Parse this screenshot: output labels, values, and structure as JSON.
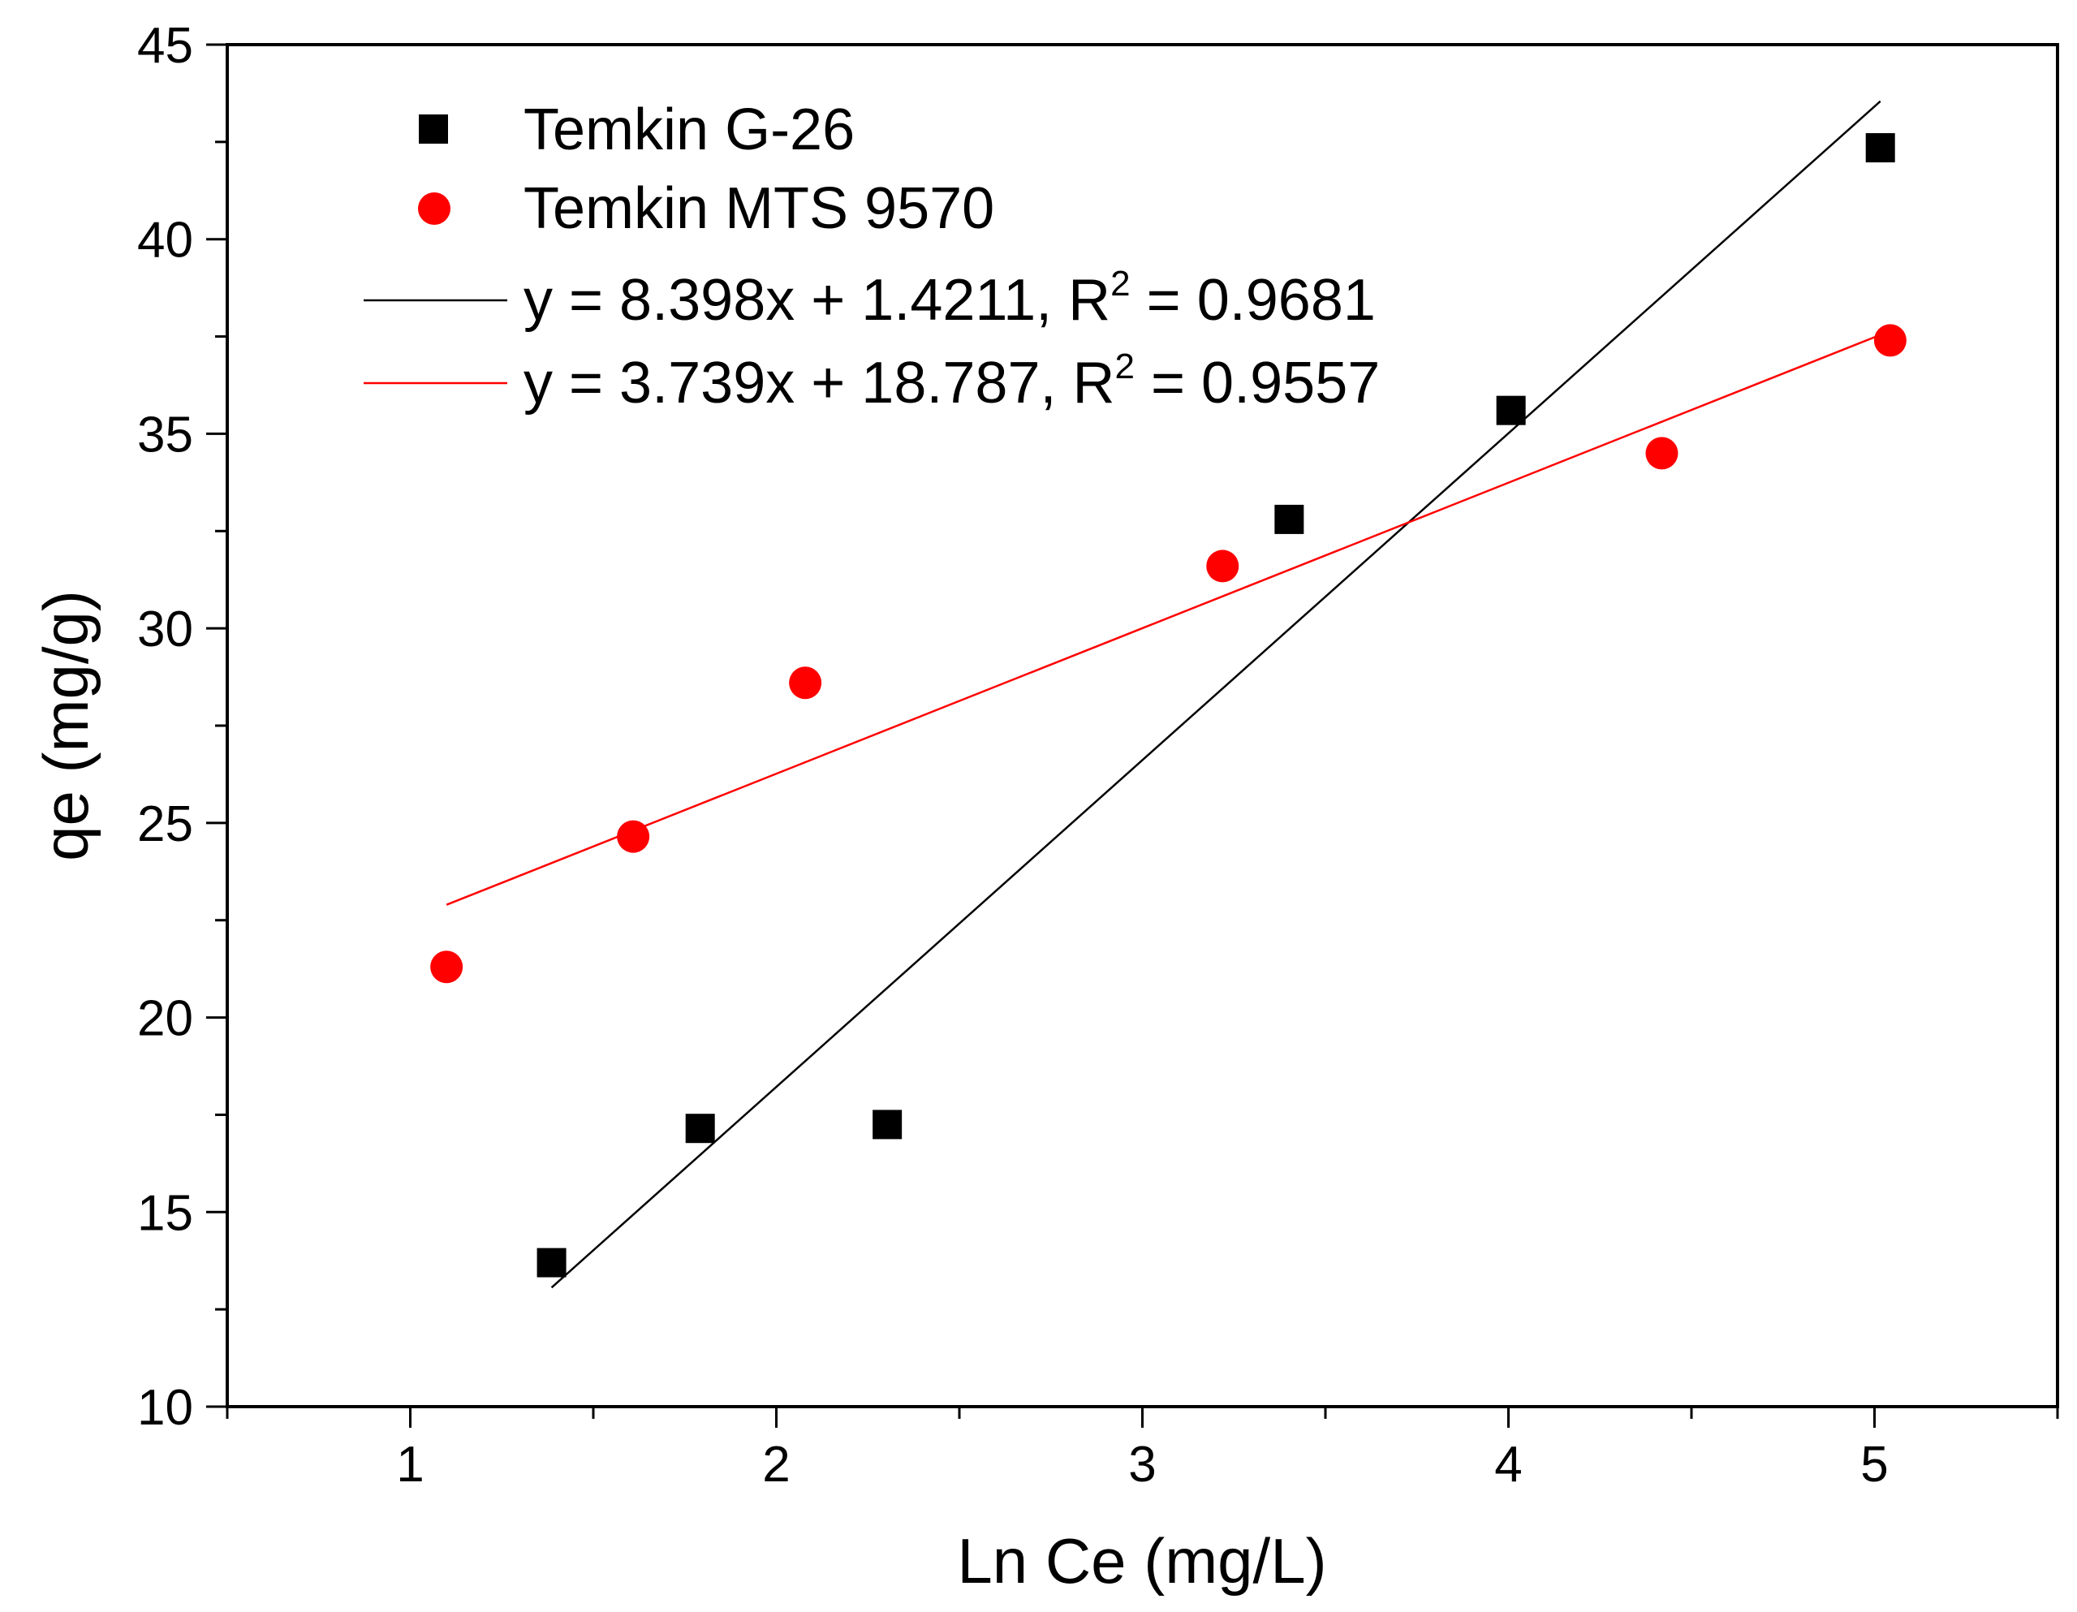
{
  "chart_data": {
    "type": "scatter",
    "title": "",
    "xlabel": "Ln Ce (mg/L)",
    "ylabel": "qe (mg/g)",
    "xlim": [
      0.5,
      5.5
    ],
    "ylim": [
      10,
      45
    ],
    "xticks": [
      1,
      2,
      3,
      4,
      5
    ],
    "xtick_labels": [
      "1",
      "2",
      "3",
      "4",
      "5"
    ],
    "yticks": [
      10,
      15,
      20,
      25,
      30,
      35,
      40,
      45
    ],
    "ytick_labels": [
      "10",
      "15",
      "20",
      "25",
      "30",
      "35",
      "40",
      "45"
    ],
    "grid": false,
    "legend_position": "top-left",
    "series": [
      {
        "name": "Temkin G-26",
        "marker": "square",
        "color": "#000000",
        "x": [
          1.386,
          1.792,
          2.303,
          3.401,
          4.007,
          5.016
        ],
        "y": [
          13.7,
          17.15,
          17.25,
          32.8,
          35.6,
          42.35
        ]
      },
      {
        "name": "Temkin MTS 9570",
        "marker": "circle",
        "color": "#ff0000",
        "x": [
          1.099,
          1.609,
          2.079,
          3.219,
          4.419,
          5.043
        ],
        "y": [
          21.3,
          24.65,
          28.6,
          31.6,
          34.5,
          37.4
        ]
      }
    ],
    "fits": [
      {
        "label_main": "y = 8.398x + 1.4211, R",
        "label_sup": "2",
        "label_tail": " = 0.9681",
        "slope": 8.398,
        "intercept": 1.4211,
        "x_range": [
          1.386,
          5.016
        ],
        "color": "#000000"
      },
      {
        "label_main": "y = 3.739x + 18.787, R",
        "label_sup": "2",
        "label_tail": " = 0.9557",
        "slope": 3.739,
        "intercept": 18.787,
        "x_range": [
          1.099,
          5.043
        ],
        "color": "#ff0000"
      }
    ]
  }
}
